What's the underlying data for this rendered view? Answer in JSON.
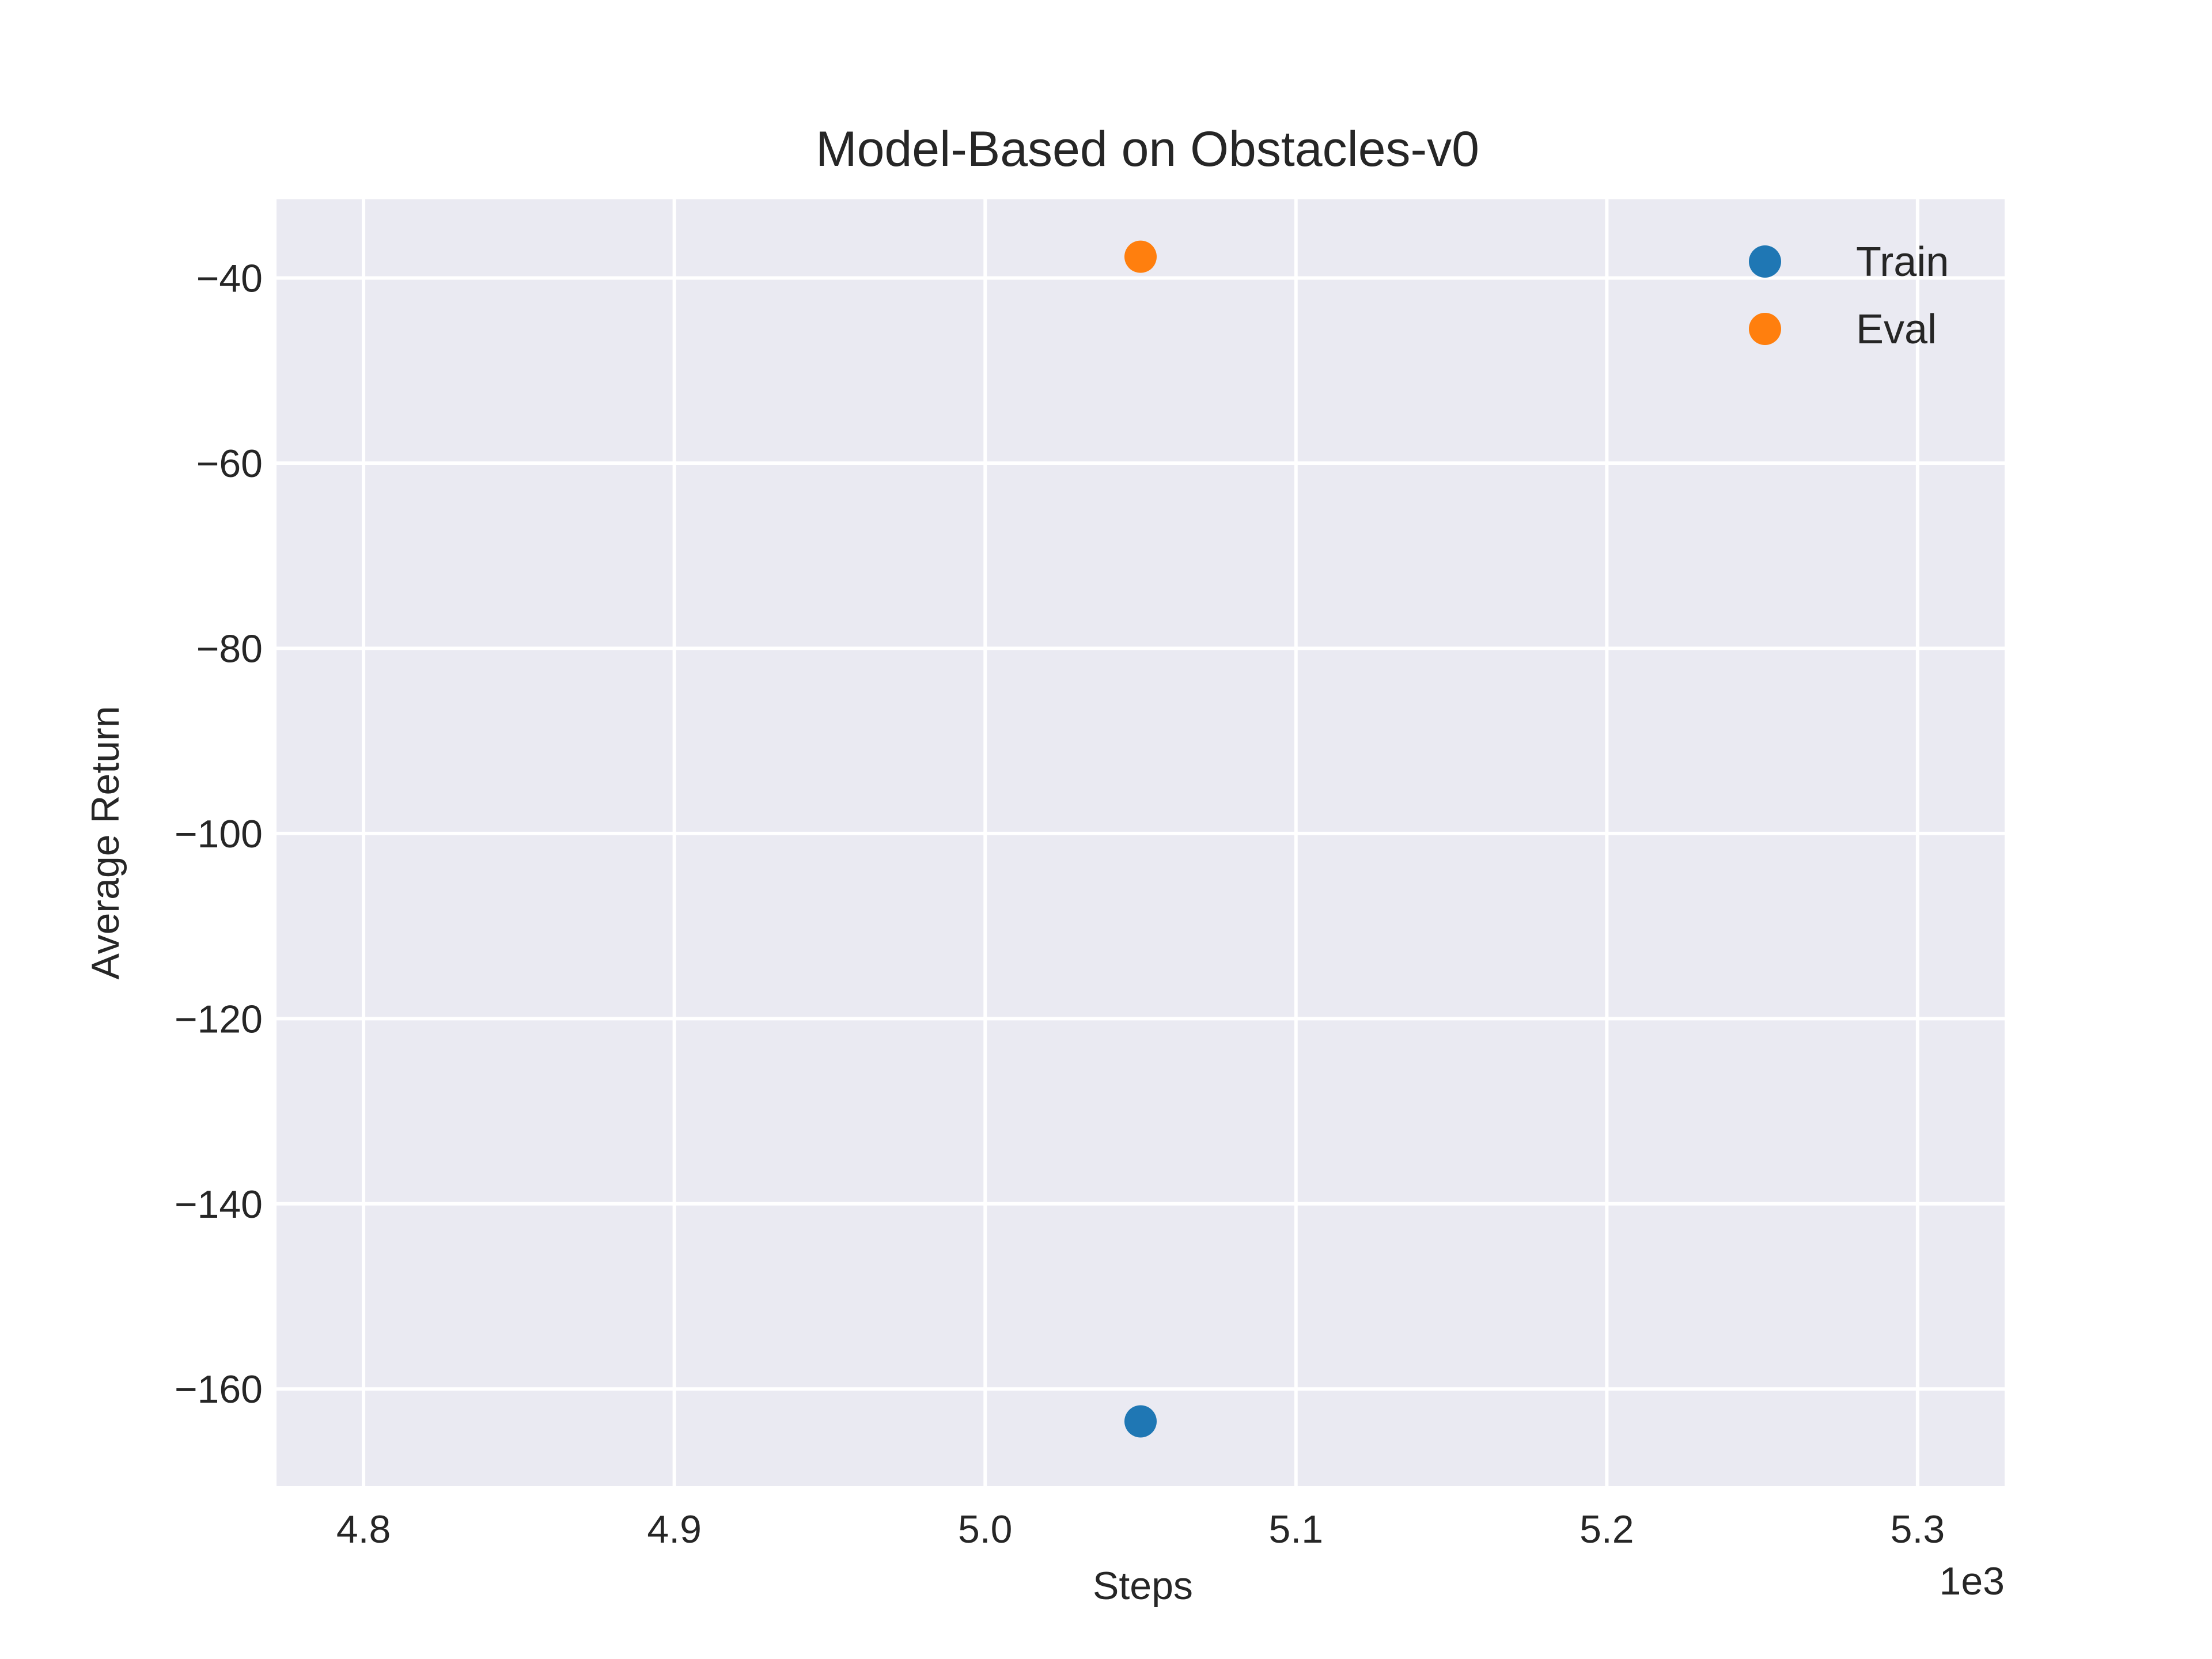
{
  "chart_data": {
    "type": "scatter",
    "title": "Model-Based on Obstacles-v0",
    "xlabel": "Steps",
    "ylabel": "Average Return",
    "x_offset_label": "1e3",
    "x_scale_factor": 1000,
    "xlim": [
      4772,
      5328
    ],
    "ylim": [
      -170.5,
      -31.5
    ],
    "xticks": [
      4800,
      4900,
      5000,
      5100,
      5200,
      5300
    ],
    "xtick_labels": [
      "4.8",
      "4.9",
      "5.0",
      "5.1",
      "5.2",
      "5.3"
    ],
    "yticks": [
      -40,
      -60,
      -80,
      -100,
      -120,
      -140,
      -160
    ],
    "ytick_labels": [
      "−40",
      "−60",
      "−80",
      "−100",
      "−120",
      "−140",
      "−160"
    ],
    "grid": true,
    "background": "#eaeaf2",
    "legend_position": "top-right",
    "series": [
      {
        "name": "Train",
        "color": "#1f77b4",
        "points": [
          {
            "x": 5050,
            "y": -163.5
          }
        ]
      },
      {
        "name": "Eval",
        "color": "#ff7f0e",
        "points": [
          {
            "x": 5050,
            "y": -37.7
          }
        ]
      }
    ]
  }
}
